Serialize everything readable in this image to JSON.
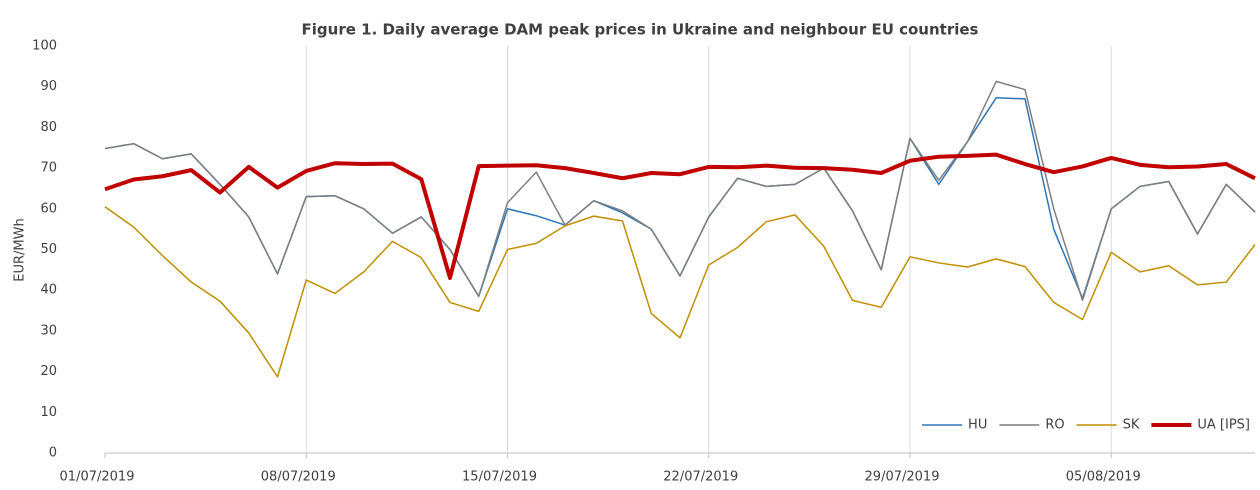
{
  "chart_data": {
    "type": "line",
    "title": "Figure 1. Daily average DAM peak prices in Ukraine and neighbour EU countries",
    "y_label": "EUR/MWh",
    "categories": [
      "01/07/2019",
      null,
      null,
      null,
      null,
      null,
      null,
      "08/07/2019",
      null,
      null,
      null,
      null,
      null,
      null,
      "15/07/2019",
      null,
      null,
      null,
      null,
      null,
      null,
      "22/07/2019",
      null,
      null,
      null,
      null,
      null,
      null,
      "29/07/2019",
      null,
      null,
      null,
      null,
      null,
      null,
      "05/08/2019",
      null,
      null,
      null,
      null,
      null
    ],
    "ylim": [
      0,
      100
    ],
    "yticks": [
      0,
      10,
      20,
      30,
      40,
      50,
      60,
      70,
      80,
      90,
      100
    ],
    "grid": true,
    "legend": "bottom-right",
    "series": [
      {
        "name": "HU",
        "color": "#2e75b6",
        "width": 1.5,
        "values": [
          74.8,
          76,
          72.3,
          73.5,
          66,
          58,
          44,
          63,
          63.2,
          60,
          54,
          58,
          50,
          38.5,
          60,
          58.3,
          56,
          62,
          59,
          55,
          43.5,
          58,
          67.5,
          65.5,
          66,
          70,
          59.5,
          45,
          77.3,
          66,
          76.5,
          87.3,
          87,
          55,
          38,
          60,
          65.5,
          66.7,
          53.8,
          66,
          59.2
        ]
      },
      {
        "name": "RO",
        "color": "#7f7f7f",
        "width": 1.5,
        "values": [
          74.8,
          76,
          72.3,
          73.5,
          66,
          58,
          44,
          63,
          63.2,
          60,
          54,
          58,
          50,
          38.5,
          61.5,
          69,
          56,
          62,
          59.5,
          55,
          43.5,
          58,
          67.5,
          65.5,
          66,
          70,
          59.5,
          45,
          77.3,
          67,
          76.5,
          91.3,
          89.3,
          60,
          37.5,
          60,
          65.5,
          66.7,
          53.8,
          66,
          59.2
        ]
      },
      {
        "name": "SK",
        "color": "#bf8f00",
        "width": 1.5,
        "values": [
          60.5,
          55.5,
          48.5,
          42,
          37.3,
          29.5,
          18.7,
          42.5,
          39.2,
          44.5,
          52,
          48,
          37,
          34.8,
          50,
          51.5,
          55.8,
          58.2,
          57,
          34.3,
          28.3,
          46.2,
          50.5,
          56.8,
          58.5,
          50.8,
          37.5,
          35.8,
          48.2,
          46.7,
          45.7,
          47.7,
          45.8,
          37,
          32.8,
          49.3,
          44.5,
          46,
          41.3,
          42,
          51.2
        ]
      },
      {
        "name": "UA [IPS]",
        "color": "#c00000",
        "width": 4,
        "values": [
          64.8,
          67.2,
          68,
          69.5,
          64,
          70.3,
          65.2,
          69.3,
          71.2,
          71,
          71.1,
          67.3,
          43,
          70.5,
          70.6,
          70.7,
          70,
          68.8,
          67.5,
          68.8,
          68.5,
          70.3,
          70.2,
          70.6,
          70.1,
          70,
          69.6,
          68.8,
          71.8,
          72.8,
          73,
          73.3,
          71,
          69,
          70.4,
          72.5,
          70.8,
          70.2,
          70.4,
          71,
          67.5
        ]
      }
    ]
  }
}
